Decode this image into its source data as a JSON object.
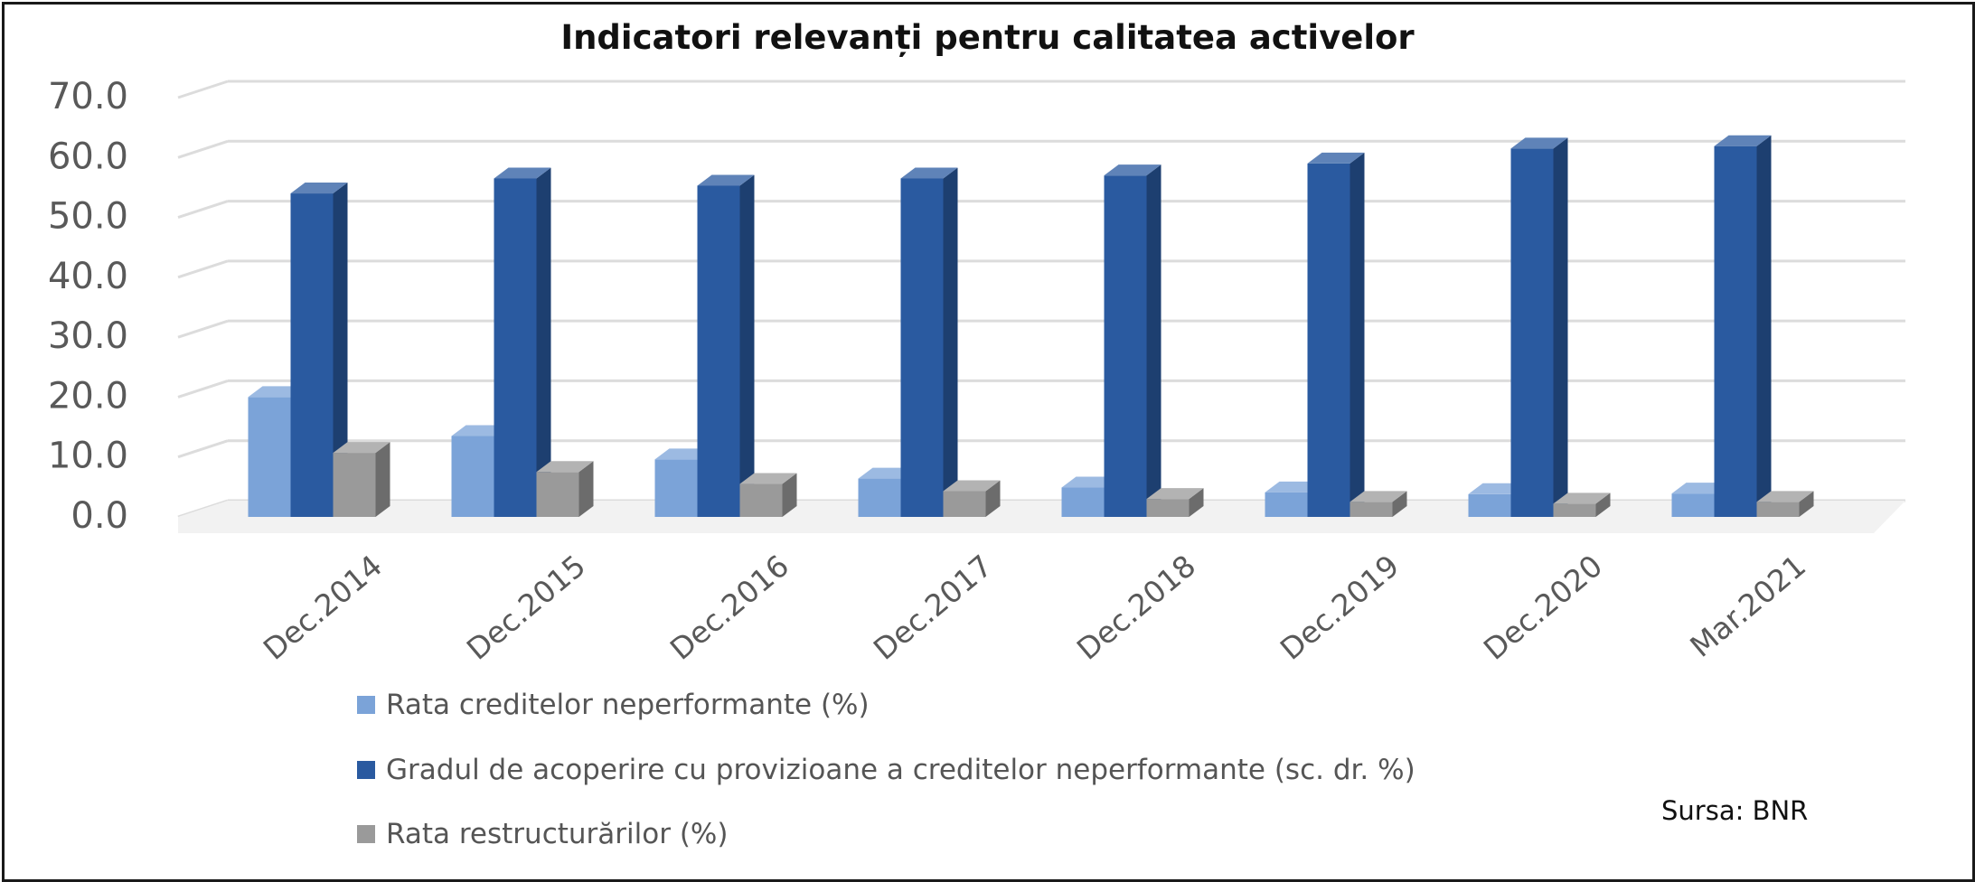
{
  "title": "Indicatori relevanți pentru calitatea activelor",
  "source": "Sursa: BNR",
  "colors": {
    "series1": "#7ba3d8",
    "series2": "#2a5aa0",
    "series3": "#9a9a9a",
    "grid": "#dcdcdc",
    "axis_text": "#595959"
  },
  "chart_data": {
    "type": "bar",
    "style": "3d-clustered-column",
    "title": "Indicatori relevanți pentru calitatea activelor",
    "categories": [
      "Dec.2014",
      "Dec.2015",
      "Dec.2016",
      "Dec.2017",
      "Dec.2018",
      "Dec.2019",
      "Dec.2020",
      "Mar.2021"
    ],
    "y_ticks": [
      "0.0",
      "10.0",
      "20.0",
      "30.0",
      "40.0",
      "50.0",
      "60.0",
      "70.0"
    ],
    "ylim": [
      0,
      70
    ],
    "grid": true,
    "legend_position": "bottom",
    "series": [
      {
        "name": "Rata creditelor neperformante (%)",
        "values": [
          20.0,
          13.5,
          9.6,
          6.4,
          4.9,
          4.1,
          3.8,
          3.9
        ]
      },
      {
        "name": "Gradul de acoperire cu provizioane a creditelor neperformante (sc. dr. %)",
        "values": [
          54.0,
          56.5,
          55.3,
          56.5,
          57.0,
          59.0,
          61.5,
          61.9
        ]
      },
      {
        "name": "Rata restructurărilor (%)",
        "values": [
          10.7,
          7.5,
          5.5,
          4.3,
          3.0,
          2.5,
          2.2,
          2.5
        ]
      }
    ]
  }
}
